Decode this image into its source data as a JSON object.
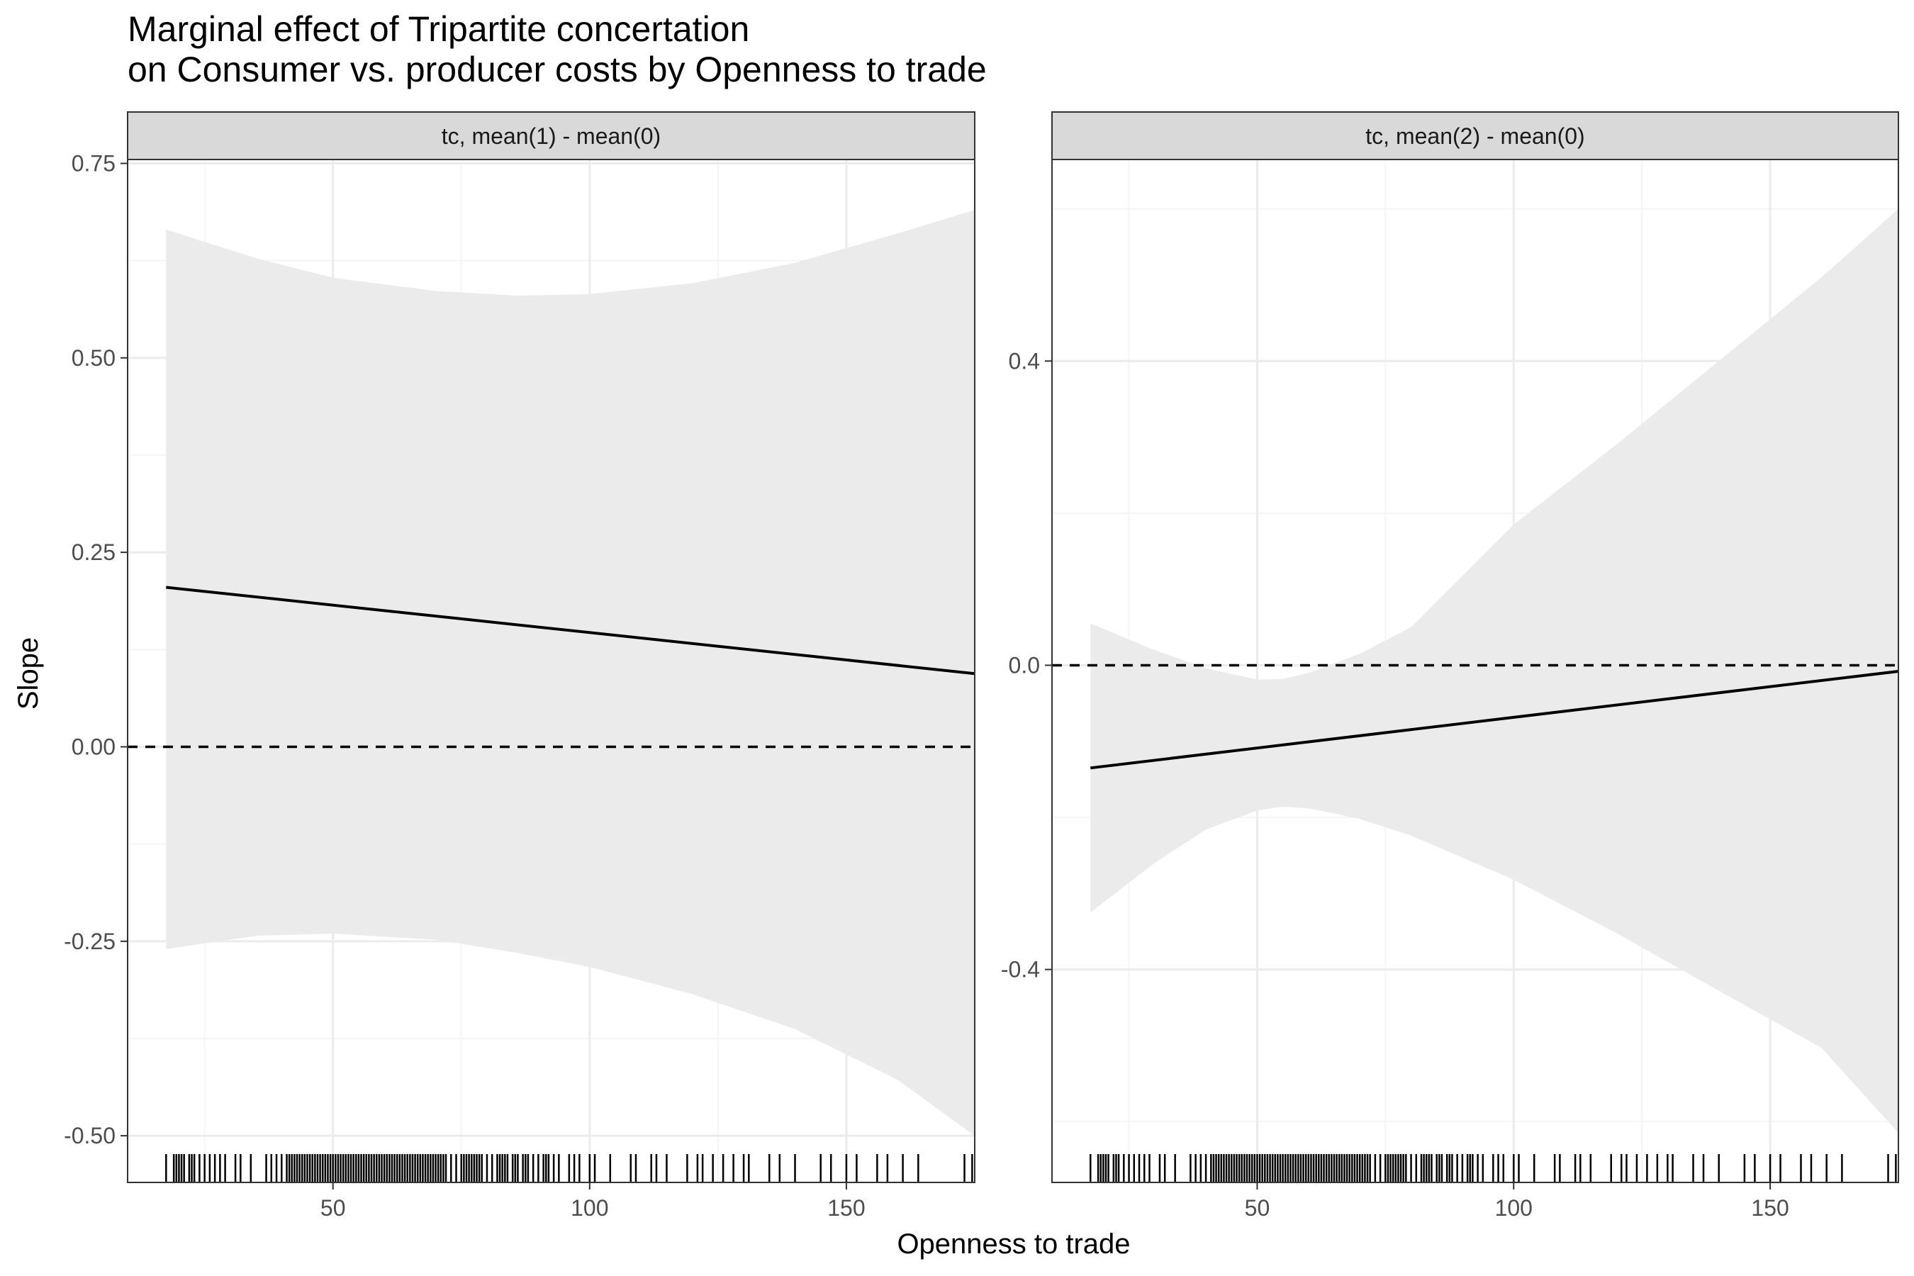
{
  "chart_data": {
    "type": "line",
    "title": "Marginal effect of Tripartite concertation\non Consumer vs. producer costs by Openness to trade",
    "xlabel": "Openness to trade",
    "ylabel": "Slope",
    "grid": true,
    "colors": {
      "ribbon": "#ebebeb",
      "line": "#000000",
      "strip_bg": "#d9d9d9",
      "grid_major": "#ebebeb",
      "grid_minor": "#f5f5f5",
      "border": "#333333"
    },
    "panels": [
      {
        "strip": "tc, mean(1) - mean(0)",
        "xlim": [
          10,
          175
        ],
        "ylim": [
          -0.56,
          0.755
        ],
        "x_ticks": [
          50,
          100,
          150
        ],
        "x_tick_labels": [
          "50",
          "100",
          "150"
        ],
        "y_ticks": [
          -0.5,
          -0.25,
          0.0,
          0.25,
          0.5,
          0.75
        ],
        "y_tick_labels": [
          "-0.50",
          "-0.25",
          "0.00",
          "0.25",
          "0.50",
          "0.75"
        ],
        "reference_line": 0,
        "series": [
          {
            "x": [
              17.5,
              35,
              50,
              70,
              86,
              100,
              120,
              140,
              160,
              175
            ],
            "values": [
              0.205,
              0.193,
              0.182,
              0.168,
              0.157,
              0.147,
              0.133,
              0.119,
              0.104,
              0.094
            ],
            "lower": [
              -0.26,
              -0.243,
              -0.24,
              -0.248,
              -0.265,
              -0.283,
              -0.318,
              -0.363,
              -0.428,
              -0.5
            ],
            "upper": [
              0.665,
              0.628,
              0.603,
              0.586,
              0.58,
              0.582,
              0.596,
              0.622,
              0.66,
              0.69
            ]
          }
        ]
      },
      {
        "strip": "tc, mean(2) - mean(0)",
        "xlim": [
          10,
          175
        ],
        "ylim": [
          -0.68,
          0.665
        ],
        "x_ticks": [
          50,
          100,
          150
        ],
        "x_tick_labels": [
          "50",
          "100",
          "150"
        ],
        "y_ticks": [
          -0.4,
          0.0,
          0.4
        ],
        "y_tick_labels": [
          "-0.4",
          "0.0",
          "0.4"
        ],
        "reference_line": 0,
        "series": [
          {
            "x": [
              17.5,
              30,
              40,
              50,
              55,
              60,
              70,
              80,
              100,
              120,
              140,
              160,
              175
            ],
            "values": [
              -0.135,
              -0.121,
              -0.11,
              -0.1,
              -0.094,
              -0.088,
              -0.077,
              -0.066,
              -0.044,
              -0.022,
              -0.001,
              -0.02,
              -0.008
            ],
            "lower": [
              -0.325,
              -0.26,
              -0.216,
              -0.191,
              -0.186,
              -0.188,
              -0.202,
              -0.224,
              -0.282,
              -0.352,
              -0.428,
              -0.503,
              -0.615
            ],
            "upper": [
              0.055,
              0.02,
              -0.004,
              -0.019,
              -0.018,
              -0.01,
              0.015,
              0.05,
              0.185,
              0.29,
              0.4,
              0.51,
              0.6
            ]
          }
        ]
      }
    ],
    "rug_x": [
      17.5,
      19,
      19.5,
      20,
      20.5,
      21,
      22,
      22.5,
      23,
      24,
      25,
      26,
      27,
      28,
      29,
      31,
      32,
      34,
      37,
      38,
      39,
      40,
      41,
      41.5,
      42,
      42.5,
      43,
      43.5,
      44,
      44.5,
      45,
      45.5,
      46,
      46.5,
      47,
      47.5,
      48,
      48.5,
      49,
      49.5,
      50,
      50.5,
      51,
      51.5,
      52,
      52.5,
      53,
      53.5,
      54,
      54.5,
      55,
      55.5,
      56,
      56.5,
      57,
      57.5,
      58,
      58.5,
      59,
      59.5,
      60,
      60.5,
      61,
      61.5,
      62,
      62.5,
      63,
      63.5,
      64,
      64.5,
      65,
      65.5,
      66,
      66.5,
      67,
      67.5,
      68,
      68.5,
      69,
      69.5,
      70,
      70.5,
      71,
      71.5,
      72,
      73,
      74,
      75,
      75.5,
      76,
      76.5,
      77,
      77.5,
      78,
      78.5,
      79,
      80,
      81,
      82,
      82.5,
      83,
      83.5,
      84,
      85,
      85.5,
      86,
      87,
      87.5,
      88,
      89,
      90,
      91,
      91.5,
      92,
      93,
      94,
      96,
      97,
      98,
      100,
      101,
      104,
      108,
      109,
      112,
      113,
      115,
      119,
      121,
      122,
      124,
      126,
      128,
      130,
      131,
      135,
      137,
      140,
      145,
      147,
      150,
      152,
      156,
      158,
      161,
      164,
      173,
      174.5
    ]
  }
}
